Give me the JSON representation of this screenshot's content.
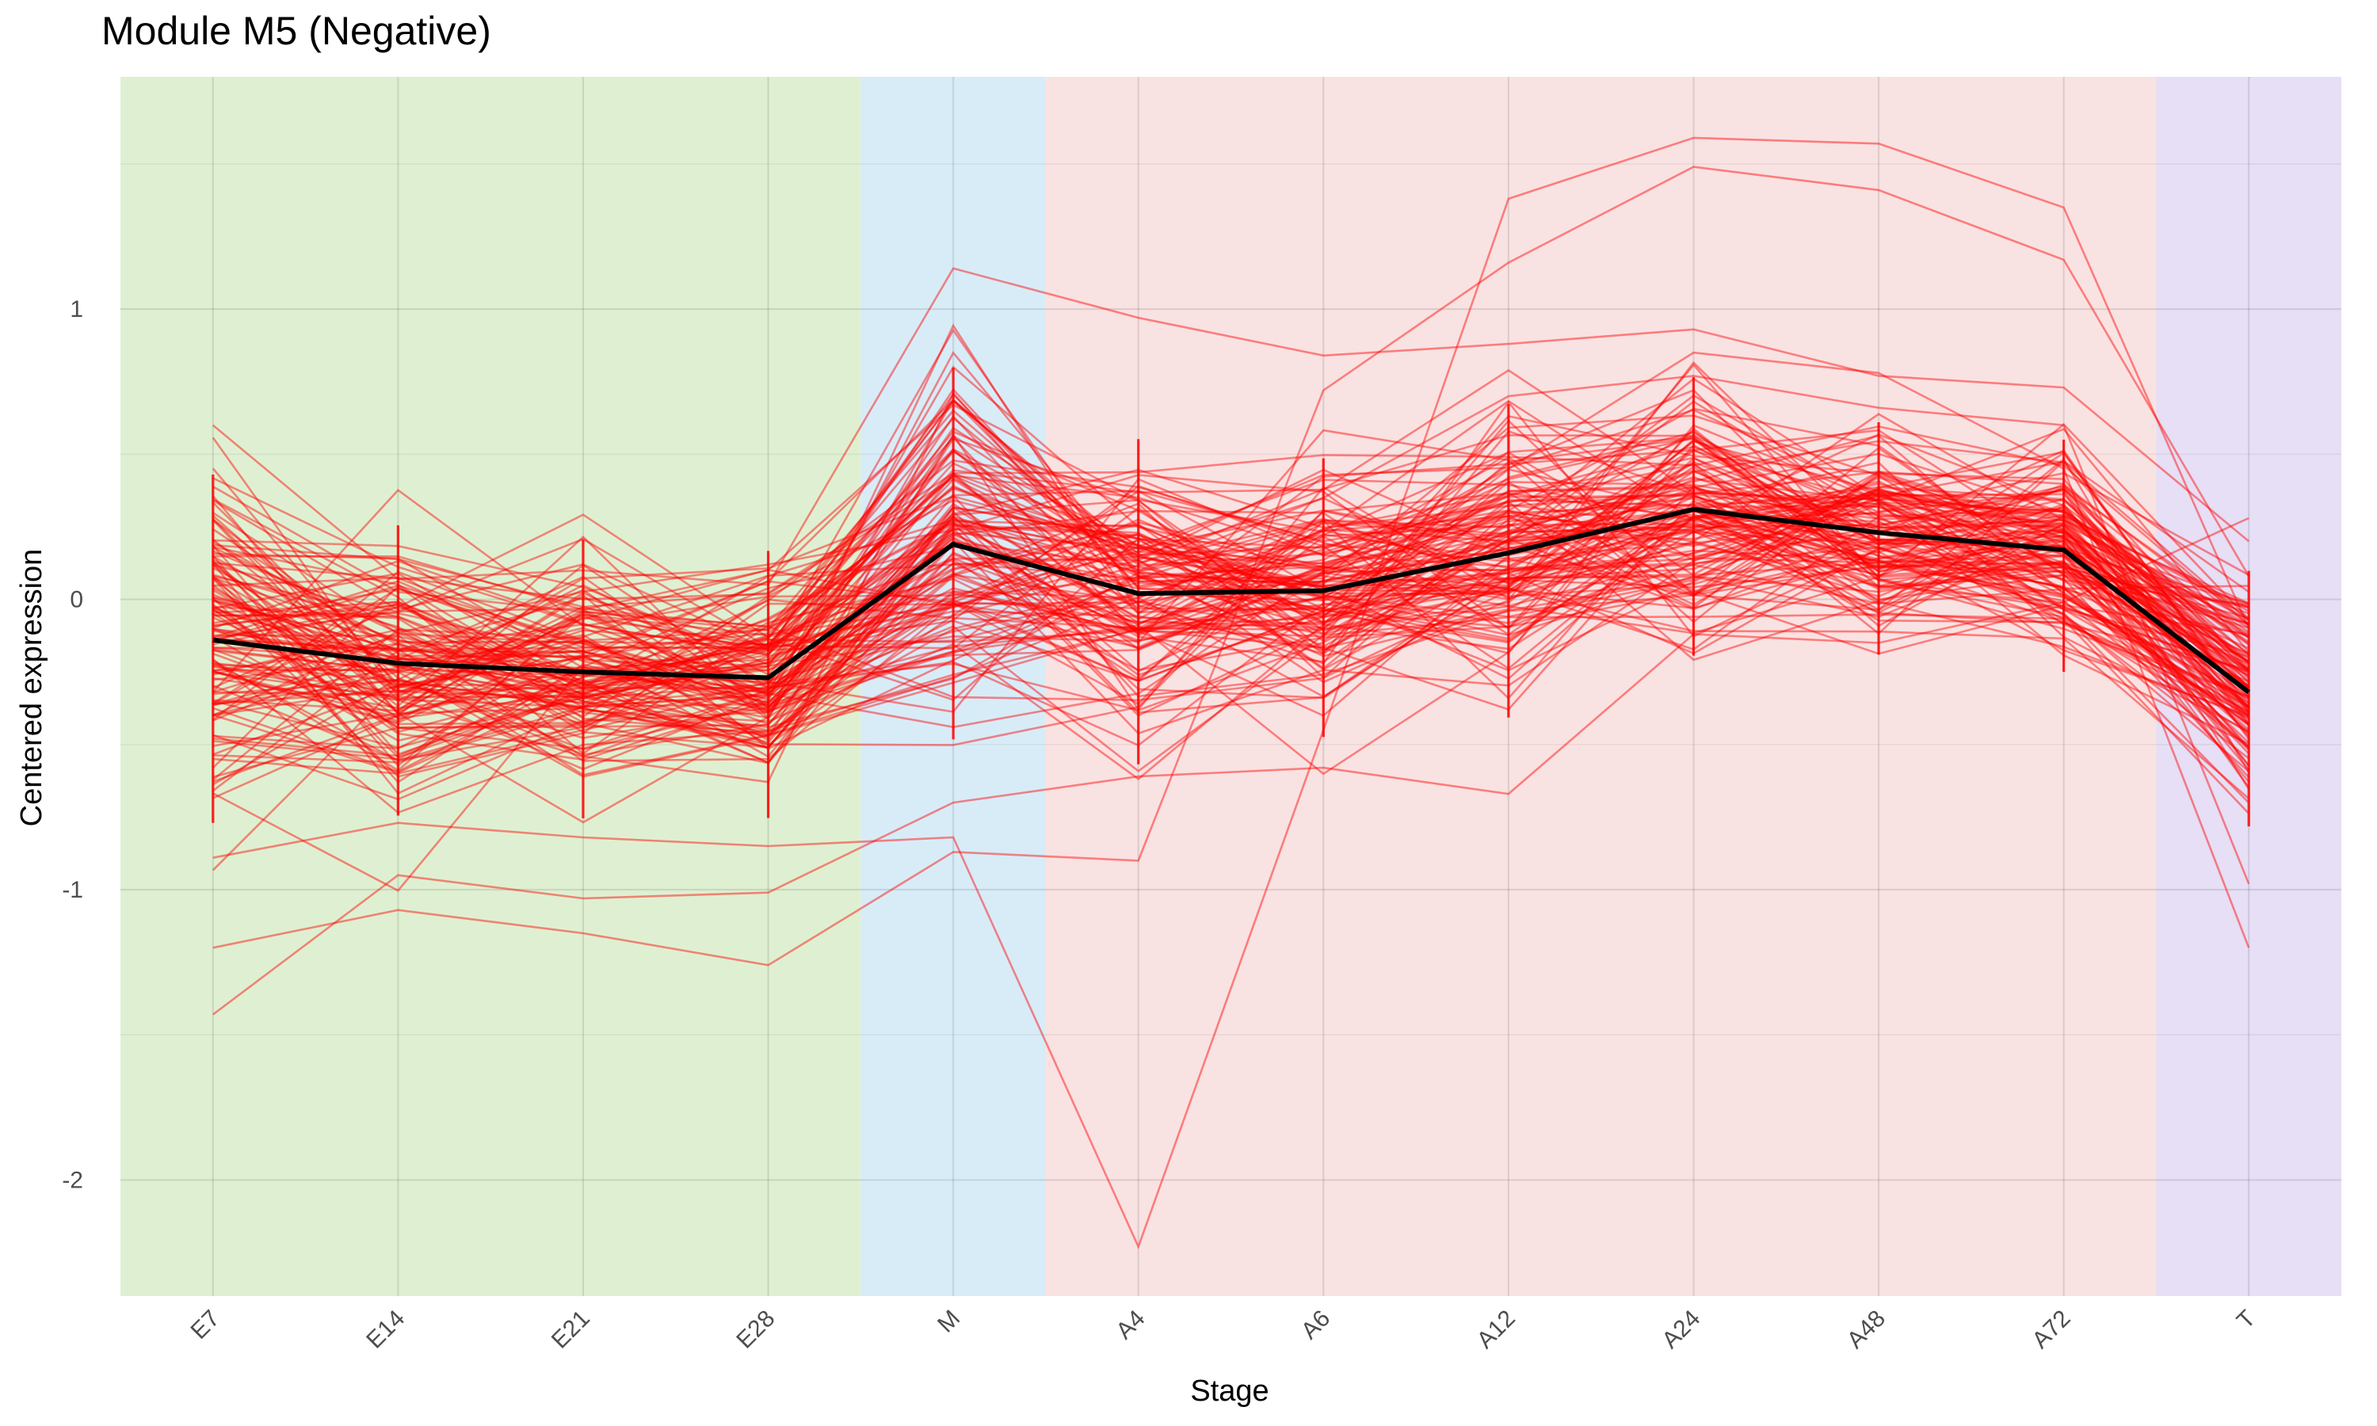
{
  "chart_data": {
    "type": "line",
    "title": "Module M5 (Negative)",
    "xlabel": "Stage",
    "ylabel": "Centered expression",
    "categories": [
      "E7",
      "E14",
      "E21",
      "E28",
      "M",
      "A4",
      "A6",
      "A12",
      "A24",
      "A48",
      "A72",
      "T"
    ],
    "yticks": [
      -2,
      -1,
      0,
      1
    ],
    "ylim": [
      -2.4,
      1.8
    ],
    "grid": true,
    "legend": "none",
    "phase_bands": [
      {
        "from": "E7",
        "to": "E28",
        "color": "#dff0d2"
      },
      {
        "from": "M",
        "to": "M",
        "color": "#d8ecf7"
      },
      {
        "from": "A4",
        "to": "A72",
        "color": "#f9e2e2"
      },
      {
        "from": "T",
        "to": "T",
        "color": "#e6dff5"
      }
    ],
    "individual_line_color": "#ff0000",
    "mean_line_color": "#000000",
    "series": [
      {
        "values": [
          -0.14,
          -0.22,
          -0.25,
          -0.27,
          0.19,
          0.02,
          0.03,
          0.16,
          0.31,
          0.23,
          0.17,
          -0.32
        ]
      }
    ],
    "spread": [
      0.3,
      0.25,
      0.24,
      0.23,
      0.32,
      0.28,
      0.24,
      0.27,
      0.24,
      0.2,
      0.2,
      0.22
    ],
    "n_gene_lines": 140,
    "notable_gene_traces": [
      [
        -1.43,
        -0.95,
        -1.03,
        -1.01,
        -0.7,
        -0.61,
        -0.58,
        -0.67,
        -0.12,
        -0.15,
        -0.01,
        0.28
      ],
      [
        -1.2,
        -1.07,
        -1.15,
        -1.26,
        -0.87,
        -0.9,
        0.72,
        1.16,
        1.49,
        1.41,
        1.17,
        0.08
      ],
      [
        -0.89,
        -0.77,
        -0.82,
        -0.85,
        -0.82,
        -2.23,
        -0.45,
        1.38,
        1.59,
        1.57,
        1.35,
        -0.1
      ],
      [
        0.6,
        0.07,
        0.1,
        0.05,
        1.14,
        0.97,
        0.84,
        0.88,
        0.93,
        0.77,
        0.73,
        0.2
      ],
      [
        -0.4,
        -0.3,
        -0.2,
        -0.1,
        0.65,
        0.1,
        0.35,
        0.7,
        0.77,
        0.66,
        0.6,
        -0.98
      ],
      [
        -0.55,
        -0.6,
        -0.45,
        -0.3,
        0.8,
        0.25,
        0.1,
        0.45,
        0.85,
        0.78,
        0.45,
        -1.2
      ]
    ]
  }
}
